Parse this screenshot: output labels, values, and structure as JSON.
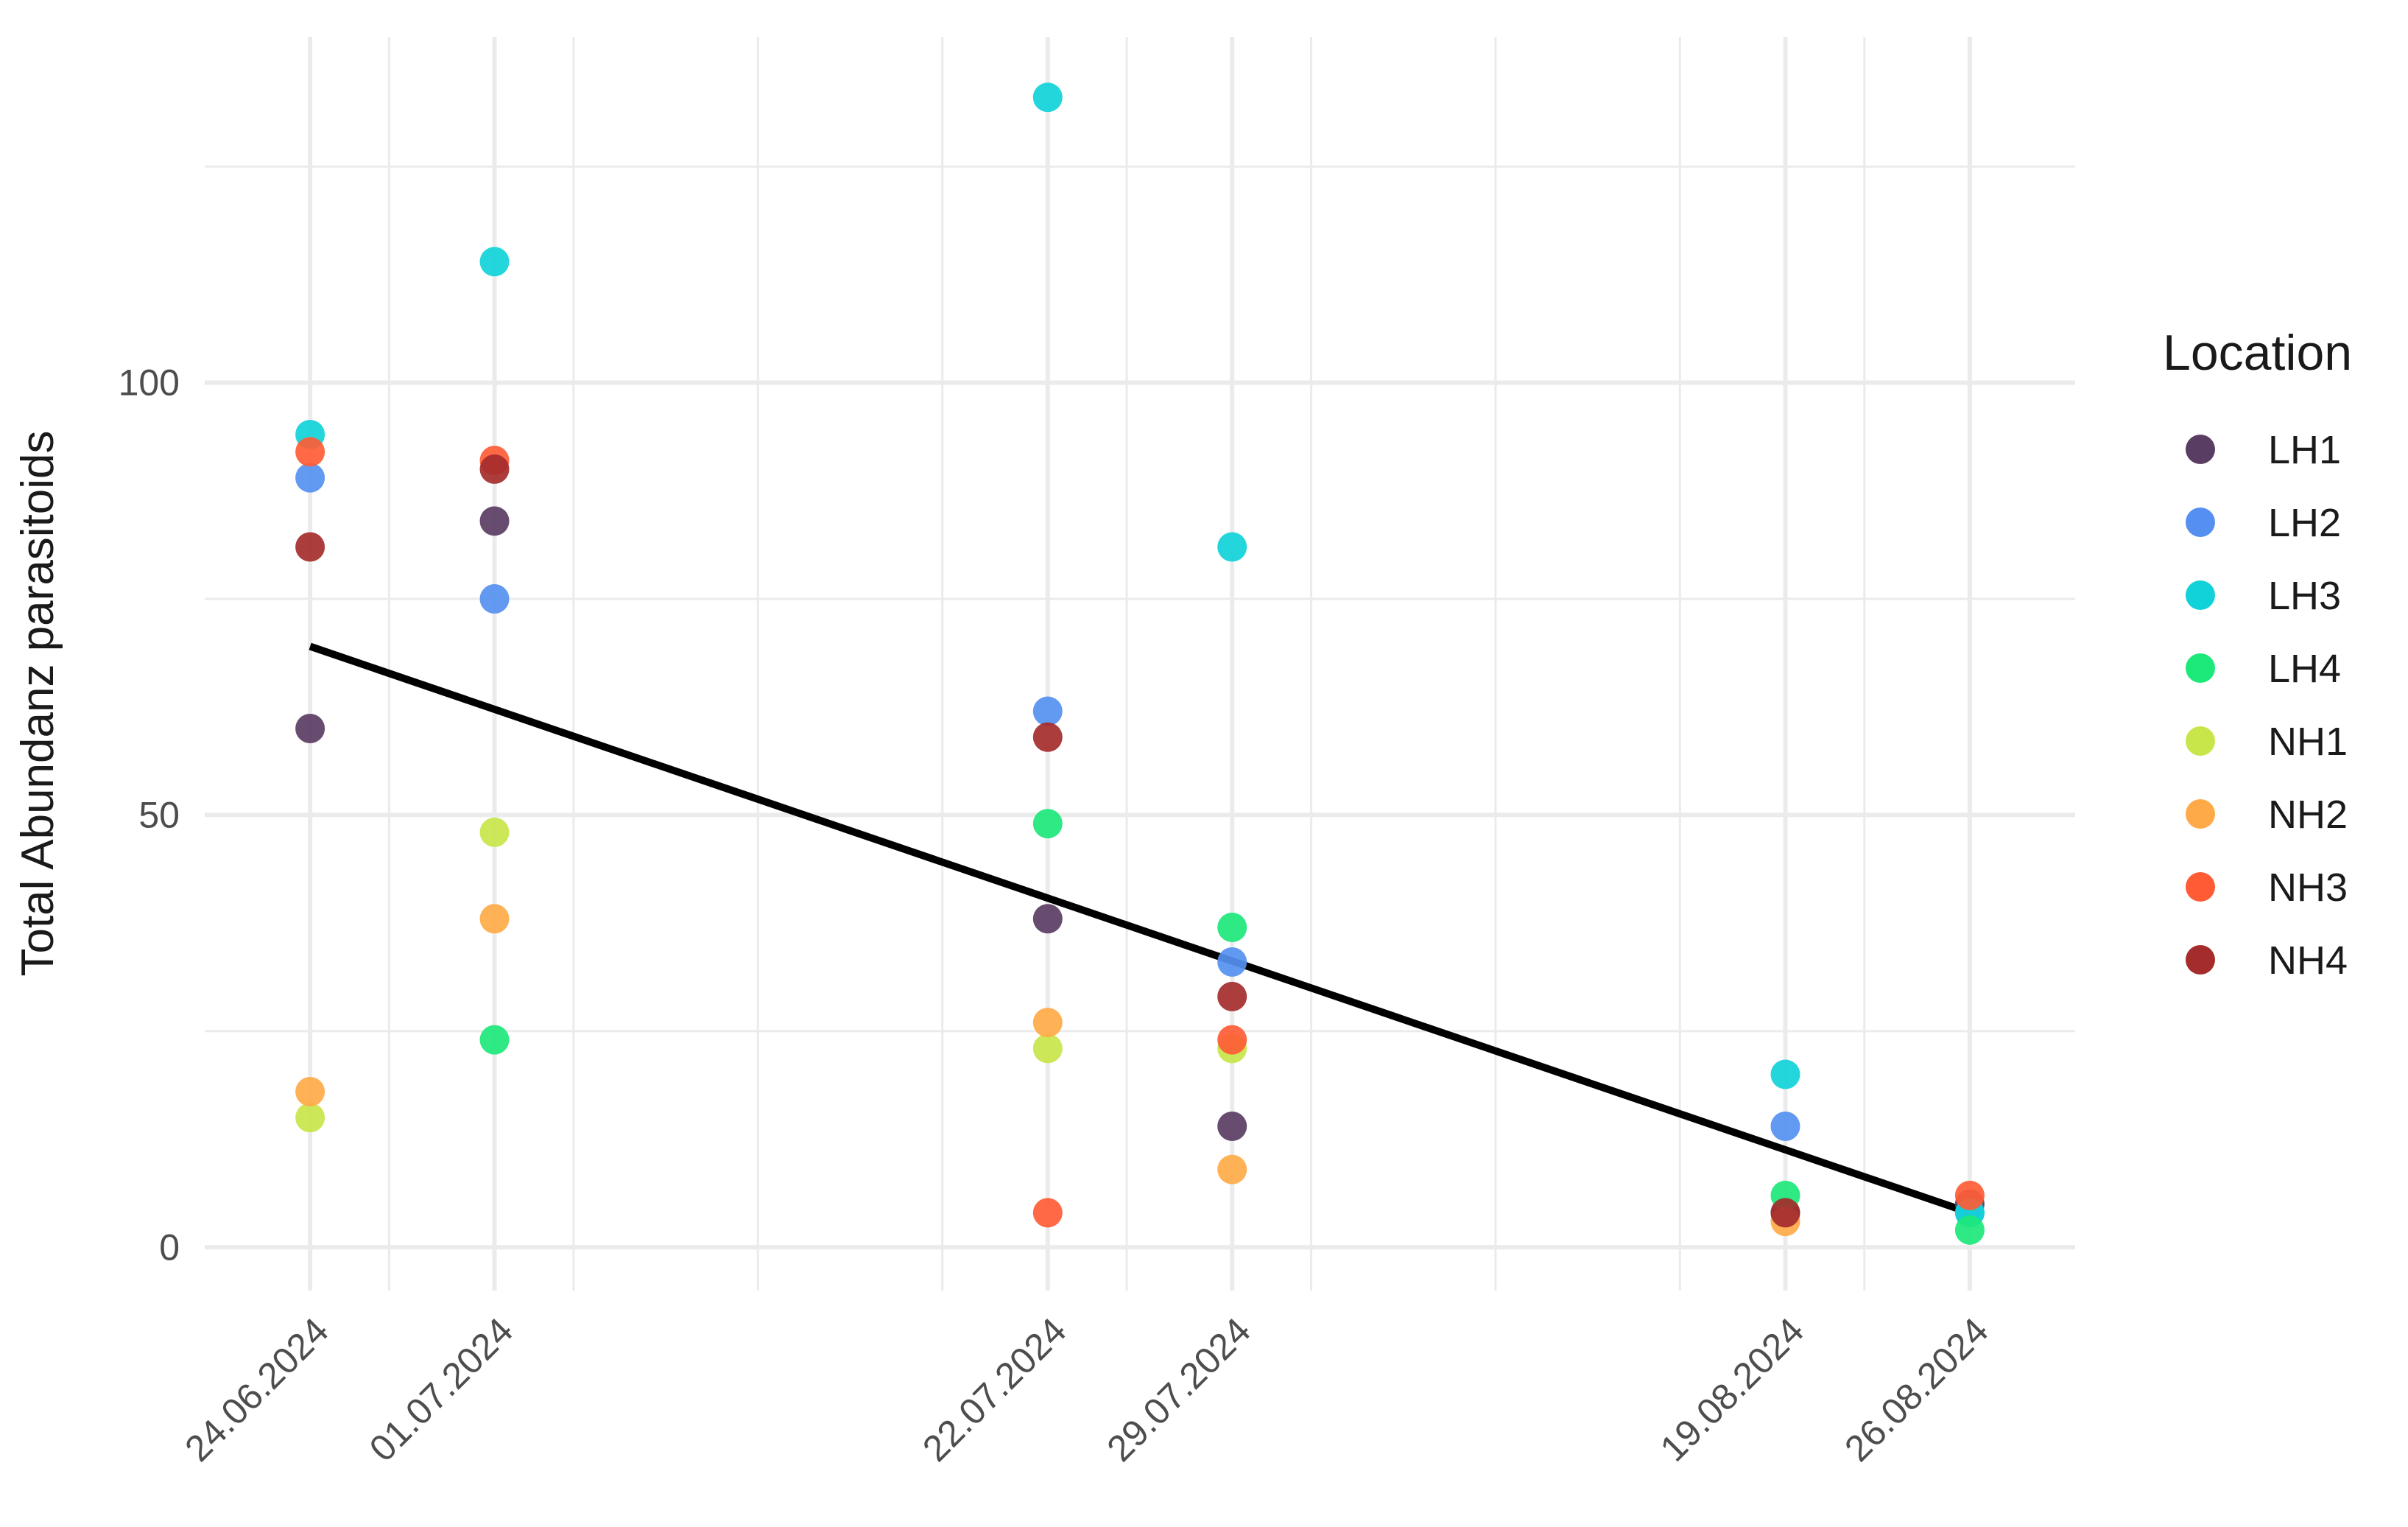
{
  "chart_data": {
    "type": "scatter",
    "title": "",
    "xlabel": "",
    "ylabel": "Total Abundanz parasitoids",
    "x_ticks": [
      "24.06.2024",
      "01.07.2024",
      "22.07.2024",
      "29.07.2024",
      "19.08.2024",
      "26.08.2024"
    ],
    "y_ticks": [
      0,
      50,
      100
    ],
    "xlim": [
      "2024-06-20",
      "2024-08-30"
    ],
    "ylim": [
      -5,
      140
    ],
    "grid": true,
    "legend": {
      "title": "Location",
      "position": "right"
    },
    "series": [
      {
        "name": "LH1",
        "color": "#5a3d63",
        "points": [
          {
            "x": "2024-06-24",
            "y": 60
          },
          {
            "x": "2024-07-01",
            "y": 84
          },
          {
            "x": "2024-07-22",
            "y": 38
          },
          {
            "x": "2024-07-29",
            "y": 14
          },
          {
            "x": "2024-08-19",
            "y": 4
          },
          {
            "x": "2024-08-26",
            "y": 5
          }
        ]
      },
      {
        "name": "LH2",
        "color": "#5590f0",
        "points": [
          {
            "x": "2024-06-24",
            "y": 89
          },
          {
            "x": "2024-07-01",
            "y": 75
          },
          {
            "x": "2024-07-22",
            "y": 62
          },
          {
            "x": "2024-07-29",
            "y": 33
          },
          {
            "x": "2024-08-19",
            "y": 14
          },
          {
            "x": "2024-08-26",
            "y": 4
          }
        ]
      },
      {
        "name": "LH3",
        "color": "#10d2d8",
        "points": [
          {
            "x": "2024-06-24",
            "y": 94
          },
          {
            "x": "2024-07-01",
            "y": 114
          },
          {
            "x": "2024-07-22",
            "y": 133
          },
          {
            "x": "2024-07-29",
            "y": 81
          },
          {
            "x": "2024-08-19",
            "y": 20
          },
          {
            "x": "2024-08-26",
            "y": 4
          }
        ]
      },
      {
        "name": "LH4",
        "color": "#1de87a",
        "points": [
          {
            "x": "2024-07-01",
            "y": 24
          },
          {
            "x": "2024-07-22",
            "y": 49
          },
          {
            "x": "2024-07-29",
            "y": 37
          },
          {
            "x": "2024-08-19",
            "y": 6
          },
          {
            "x": "2024-08-26",
            "y": 2
          }
        ]
      },
      {
        "name": "NH1",
        "color": "#c8e64a",
        "points": [
          {
            "x": "2024-06-24",
            "y": 15
          },
          {
            "x": "2024-07-01",
            "y": 48
          },
          {
            "x": "2024-07-22",
            "y": 23
          },
          {
            "x": "2024-07-29",
            "y": 23
          }
        ]
      },
      {
        "name": "NH2",
        "color": "#ffaa48",
        "points": [
          {
            "x": "2024-06-24",
            "y": 18
          },
          {
            "x": "2024-07-01",
            "y": 38
          },
          {
            "x": "2024-07-22",
            "y": 26
          },
          {
            "x": "2024-07-29",
            "y": 9
          },
          {
            "x": "2024-08-19",
            "y": 3
          }
        ]
      },
      {
        "name": "NH3",
        "color": "#ff5c35",
        "points": [
          {
            "x": "2024-06-24",
            "y": 92
          },
          {
            "x": "2024-07-01",
            "y": 91
          },
          {
            "x": "2024-07-22",
            "y": 4
          },
          {
            "x": "2024-07-29",
            "y": 24
          },
          {
            "x": "2024-08-26",
            "y": 6
          }
        ]
      },
      {
        "name": "NH4",
        "color": "#a52c2c",
        "points": [
          {
            "x": "2024-06-24",
            "y": 81
          },
          {
            "x": "2024-07-01",
            "y": 90
          },
          {
            "x": "2024-07-22",
            "y": 59
          },
          {
            "x": "2024-07-29",
            "y": 29
          },
          {
            "x": "2024-08-19",
            "y": 4
          }
        ]
      }
    ],
    "trend_line": {
      "color": "#000000",
      "start": {
        "x": "2024-06-24",
        "y": 69.5
      },
      "end": {
        "x": "2024-08-26",
        "y": 4
      }
    }
  }
}
